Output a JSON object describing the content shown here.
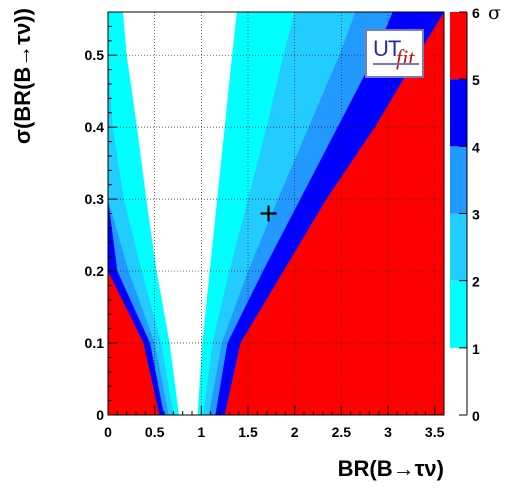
{
  "chart_data": {
    "type": "heatmap",
    "title": "",
    "xlabel": "BR(B→τν)",
    "ylabel": "σ(BR(B→τν))",
    "xlim": [
      0,
      3.6
    ],
    "ylim": [
      0,
      0.56
    ],
    "xticks": [
      "0",
      "0.5",
      "1",
      "1.5",
      "2",
      "2.5",
      "3",
      "3.5"
    ],
    "yticks": [
      "0",
      "0.1",
      "0.2",
      "0.3",
      "0.4",
      "0.5"
    ],
    "grid": true,
    "color_scale": {
      "label": "σ",
      "ticks": [
        "0",
        "1",
        "2",
        "3",
        "4",
        "5",
        "6"
      ],
      "bands": [
        {
          "from": 0,
          "to": 1,
          "color": "#ffffff"
        },
        {
          "from": 1,
          "to": 2,
          "color": "#00ffff"
        },
        {
          "from": 2,
          "to": 3,
          "color": "#22ccff"
        },
        {
          "from": 3,
          "to": 4,
          "color": "#2299ff"
        },
        {
          "from": 4,
          "to": 5,
          "color": "#0000ff"
        },
        {
          "from": 5,
          "to": 6,
          "color": "#ff0000"
        }
      ]
    },
    "contour_boundaries_note": "x positions of σ-contour boundaries at given y (σ(BR))",
    "left_boundaries": {
      "y": [
        0.0,
        0.1,
        0.2,
        0.3,
        0.4,
        0.5,
        0.56
      ],
      "sigma5": [
        0.55,
        0.38,
        0.0,
        0.0,
        0.0,
        0.0,
        0.0
      ],
      "sigma4": [
        0.6,
        0.45,
        0.1,
        0.0,
        0.0,
        0.0,
        0.0
      ],
      "sigma3": [
        0.65,
        0.5,
        0.22,
        0.0,
        0.0,
        0.0,
        0.0
      ],
      "sigma2": [
        0.7,
        0.57,
        0.36,
        0.17,
        0.05,
        0.0,
        0.0
      ],
      "sigma1": [
        0.76,
        0.66,
        0.52,
        0.41,
        0.31,
        0.2,
        0.16
      ]
    },
    "right_boundaries": {
      "y": [
        0.0,
        0.1,
        0.2,
        0.3,
        0.4,
        0.5,
        0.56
      ],
      "sigma1": [
        0.96,
        1.01,
        1.09,
        1.17,
        1.25,
        1.33,
        1.38
      ],
      "sigma2": [
        1.02,
        1.12,
        1.3,
        1.5,
        1.7,
        1.88,
        2.0
      ],
      "sigma3": [
        1.08,
        1.22,
        1.5,
        1.82,
        2.15,
        2.48,
        2.65
      ],
      "sigma4": [
        1.15,
        1.28,
        1.66,
        2.06,
        2.46,
        2.86,
        3.05
      ],
      "sigma5": [
        1.25,
        1.42,
        1.88,
        2.34,
        2.86,
        3.32,
        3.6
      ]
    },
    "marker": {
      "x": 1.72,
      "y": 0.28,
      "symbol": "+"
    }
  },
  "logo": {
    "ut": "UT",
    "fit": "fit"
  }
}
